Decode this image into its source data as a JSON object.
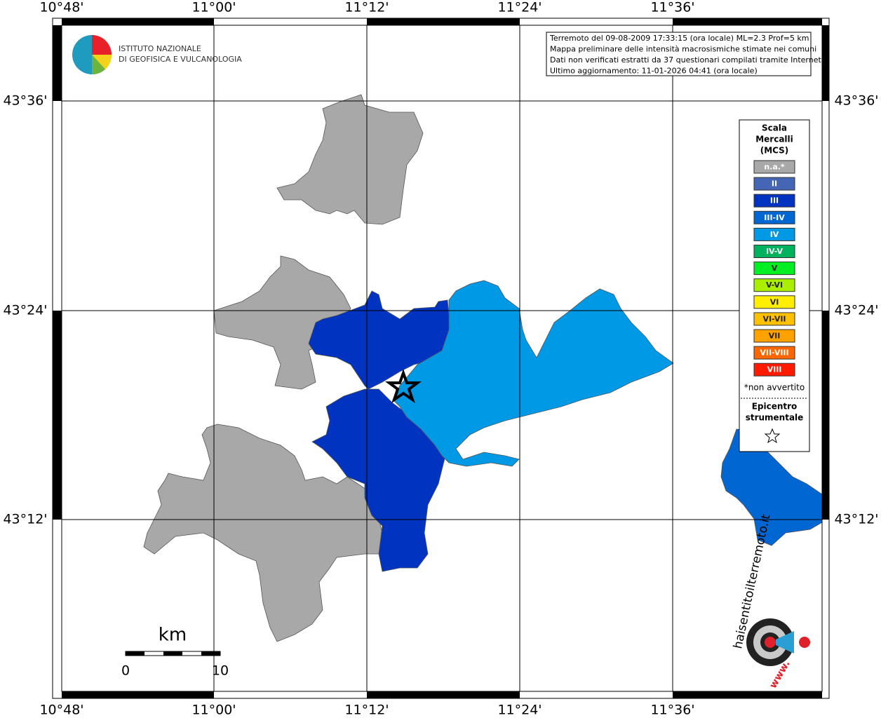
{
  "logo": {
    "line1": "ISTITUTO NAZIONALE",
    "line2": "DI GEOFISICA E VULCANOLOGIA"
  },
  "info": [
    "Terremoto del 09-08-2009 17:33:15 (ora locale) ML=2.3 Prof=5 km",
    "Mappa preliminare delle intensità macrosismiche stimate nei comuni",
    "Dati non verificati estratti da 37 questionari compilati tramite Internet.",
    "Ultimo aggiornamento: 11-01-2026 04:41 (ora locale)"
  ],
  "legend": {
    "title": [
      "Scala",
      "Mercalli",
      "(MCS)"
    ],
    "classes": [
      {
        "label": "n.a.*",
        "color": "#a8a8a8"
      },
      {
        "label": "II",
        "color": "#4566b4"
      },
      {
        "label": "III",
        "color": "#0033c0"
      },
      {
        "label": "III-IV",
        "color": "#0066d2"
      },
      {
        "label": "IV",
        "color": "#0099e6"
      },
      {
        "label": "IV-V",
        "color": "#00b25e"
      },
      {
        "label": "V",
        "color": "#00ee22"
      },
      {
        "label": "V-VI",
        "color": "#aaee00"
      },
      {
        "label": "VI",
        "color": "#ffee00"
      },
      {
        "label": "VI-VII",
        "color": "#ffc000"
      },
      {
        "label": "VII",
        "color": "#ffa200"
      },
      {
        "label": "VII-VIII",
        "color": "#ff6600"
      },
      {
        "label": "VIII",
        "color": "#ff1a00"
      }
    ],
    "note": "*non avvertito",
    "epicenter": [
      "Epicentro",
      "strumentale"
    ]
  },
  "lon_labels": [
    "10°48'",
    "11°00'",
    "11°12'",
    "11°24'",
    "11°36'"
  ],
  "lat_labels": [
    "43°36'",
    "43°24'",
    "43°12'"
  ],
  "scale_bar": {
    "unit": "km",
    "min": "0",
    "max": "10"
  },
  "badge": {
    "site": "haisentitoilterremoto.it",
    "www": "www."
  }
}
